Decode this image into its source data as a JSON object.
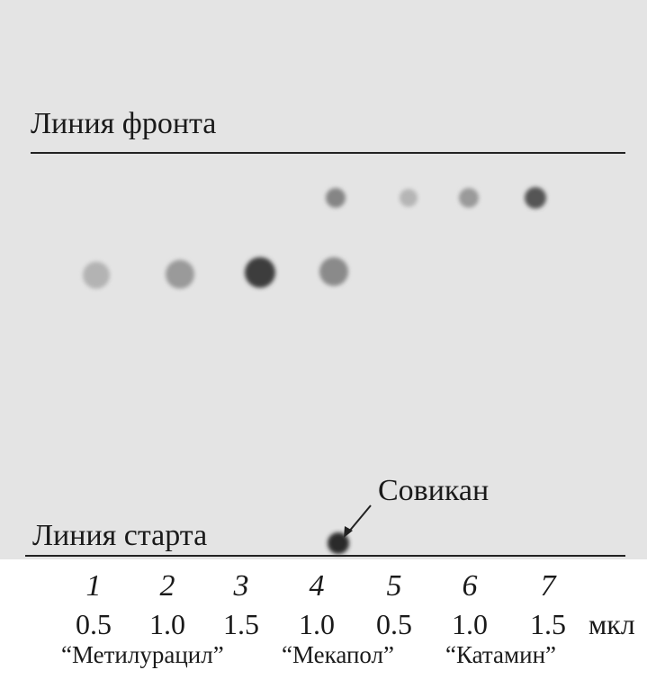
{
  "front_label": "Линия фронта",
  "start_label": "Линия старта",
  "spot_label": "Совикан",
  "lanes": [
    {
      "number": "1",
      "volume": "0.5"
    },
    {
      "number": "2",
      "volume": "1.0"
    },
    {
      "number": "3",
      "volume": "1.5"
    },
    {
      "number": "4",
      "volume": "1.0"
    },
    {
      "number": "5",
      "volume": "0.5"
    },
    {
      "number": "6",
      "volume": "1.0"
    },
    {
      "number": "7",
      "volume": "1.5"
    }
  ],
  "unit": "мкл",
  "groups": [
    "“Метилурацил”",
    "“Мекапол”",
    "“Катамин”"
  ]
}
